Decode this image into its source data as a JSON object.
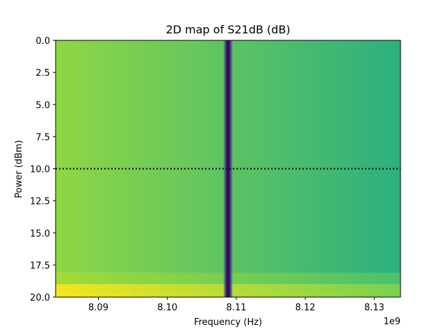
{
  "chart_data": {
    "type": "heatmap",
    "title": "2D map of S21dB (dB)",
    "xlabel": "Frequency (Hz)",
    "ylabel": "Power (dBm)",
    "x_offset_label": "1e9",
    "xlim": [
      8.0838,
      8.1338
    ],
    "ylim": [
      20.0,
      0.0
    ],
    "x_tick_values": [
      8.09,
      8.1,
      8.11,
      8.12,
      8.13
    ],
    "x_tick_labels": [
      "8.09",
      "8.10",
      "8.11",
      "8.12",
      "8.13"
    ],
    "y_tick_values": [
      0.0,
      2.5,
      5.0,
      7.5,
      10.0,
      12.5,
      15.0,
      17.5,
      20.0
    ],
    "y_tick_labels": [
      "0.0",
      "2.5",
      "5.0",
      "7.5",
      "10.0",
      "12.5",
      "15.0",
      "17.5",
      "20.0"
    ],
    "colormap": "viridis",
    "resonance_frequency": 8.1088,
    "marker_line": {
      "power": 10.0,
      "style": "dotted",
      "color": "#000000"
    },
    "horizontal_bands": [
      {
        "power_range": [
          0.0,
          18.1
        ],
        "left_color": "#8fd744",
        "right_color": "#2bb07f"
      },
      {
        "power_range": [
          18.1,
          19.0
        ],
        "left_color": "#a5db36",
        "right_color": "#4ac16d"
      },
      {
        "power_range": [
          19.0,
          20.0
        ],
        "left_color": "#f4e61e",
        "right_color": "#7ad151"
      }
    ]
  }
}
